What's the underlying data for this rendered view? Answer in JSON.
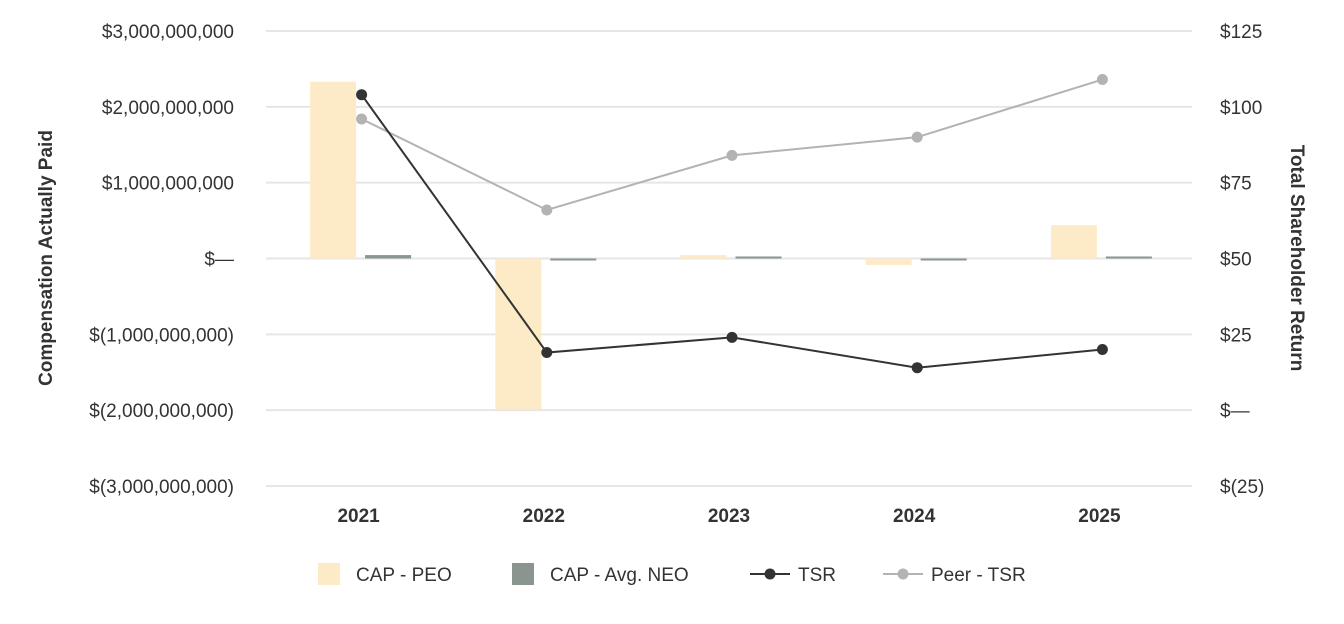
{
  "chart_data": {
    "type": "bar",
    "categories": [
      "2021",
      "2022",
      "2023",
      "2024",
      "2025"
    ],
    "series": [
      {
        "name": "CAP - PEO",
        "kind": "bar",
        "axis": "left",
        "color": "#fdebc8",
        "values": [
          2330000000,
          -1990000000,
          45000000,
          -85000000,
          440000000
        ]
      },
      {
        "name": "CAP - Avg. NEO",
        "kind": "bar",
        "axis": "left",
        "color": "#8a9590",
        "values": [
          45000000,
          -25000000,
          15000000,
          -15000000,
          10000000
        ]
      },
      {
        "name": "TSR",
        "kind": "line",
        "axis": "right",
        "color": "#333333",
        "values": [
          104,
          19,
          24,
          14,
          20
        ]
      },
      {
        "name": "Peer - TSR",
        "kind": "line",
        "axis": "right",
        "color": "#b3b3b3",
        "values": [
          96,
          66,
          84,
          90,
          109
        ]
      }
    ],
    "ylabel": "Compensation Actually Paid",
    "y2label": "Total Shareholder Return",
    "ylim": [
      -3000000000,
      3000000000
    ],
    "y2lim": [
      -25,
      125
    ],
    "left_ticks": [
      "$(3,000,000,000)",
      "$(2,000,000,000)",
      "$(1,000,000,000)",
      "$—",
      "$1,000,000,000",
      "$2,000,000,000",
      "$3,000,000,000"
    ],
    "right_ticks": [
      "$(25)",
      "$—",
      "$25",
      "$50",
      "$75",
      "$100",
      "$125"
    ],
    "grid": true,
    "legend_position": "bottom"
  }
}
